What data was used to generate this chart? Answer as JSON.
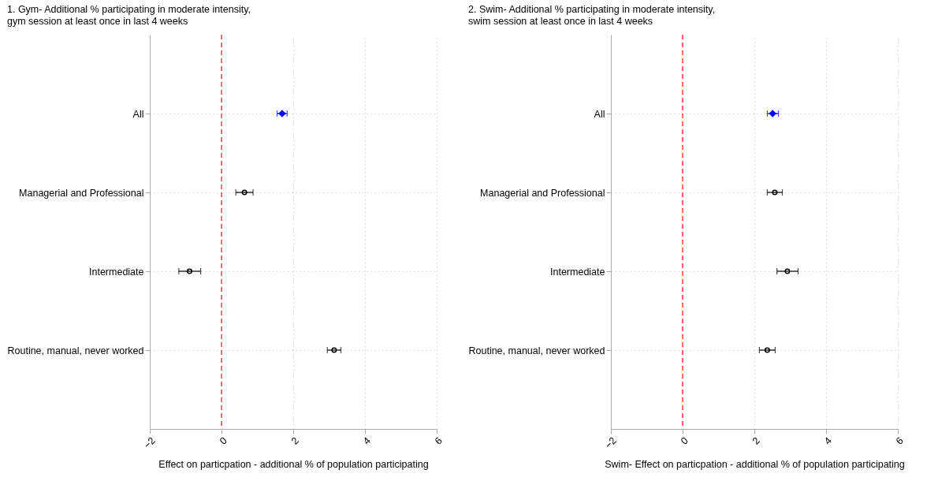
{
  "chart_data": [
    {
      "type": "scatter",
      "orientation": "horizontal",
      "title": "1. Gym- Additional %  participating in moderate intensity,\ngym session at least once in last 4 weeks",
      "xlabel": "Effect on particpation - additional % of population participating",
      "categories": [
        "All",
        "Managerial and Professional",
        "Intermediate",
        "Routine, manual, never worked"
      ],
      "xlim": [
        -2,
        6
      ],
      "xticks": [
        -2,
        0,
        2,
        4,
        6
      ],
      "grid": true,
      "ref_lines": [
        {
          "axis": "x",
          "value": 0,
          "color": "#ff4040",
          "line_style": "dashed"
        }
      ],
      "series": [
        {
          "color": "#0000ff",
          "marker": "diamond",
          "values": [
            1.69,
            null,
            null,
            null
          ],
          "errors": [
            [
              1.55,
              1.83
            ],
            null,
            null,
            null
          ]
        },
        {
          "color": "#000000",
          "marker": "circle",
          "values": [
            null,
            0.64,
            -0.89,
            3.14
          ],
          "errors": [
            null,
            [
              0.4,
              0.88
            ],
            [
              -1.19,
              -0.58
            ],
            [
              2.95,
              3.33
            ]
          ]
        }
      ]
    },
    {
      "type": "scatter",
      "orientation": "horizontal",
      "title": "2. Swim- Additional %  participating in moderate intensity,\nswim session at least once in last 4 weeks",
      "xlabel": "Swim- Effect on particpation - additional % of population participating",
      "categories": [
        "All",
        "Managerial and Professional",
        "Intermediate",
        "Routine, manual, never worked"
      ],
      "xlim": [
        -2,
        6
      ],
      "xticks": [
        -2,
        0,
        2,
        4,
        6
      ],
      "grid": true,
      "ref_lines": [
        {
          "axis": "x",
          "value": 0,
          "color": "#ff4040",
          "line_style": "dashed"
        }
      ],
      "series": [
        {
          "color": "#0000ff",
          "marker": "diamond",
          "values": [
            2.51,
            null,
            null,
            null
          ],
          "errors": [
            [
              2.36,
              2.67
            ],
            null,
            null,
            null
          ]
        },
        {
          "color": "#000000",
          "marker": "circle",
          "values": [
            null,
            2.57,
            2.92,
            2.36
          ],
          "errors": [
            null,
            [
              2.36,
              2.78
            ],
            [
              2.63,
              3.22
            ],
            [
              2.14,
              2.58
            ]
          ]
        }
      ]
    }
  ]
}
